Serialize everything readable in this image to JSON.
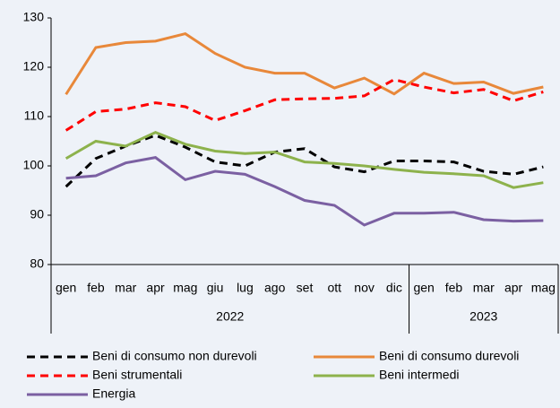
{
  "chart_data": {
    "type": "line",
    "years": [
      {
        "name": "2022",
        "months": [
          "gen",
          "feb",
          "mar",
          "apr",
          "mag",
          "giu",
          "lug",
          "ago",
          "set",
          "ott",
          "nov",
          "dic"
        ]
      },
      {
        "name": "2023",
        "months": [
          "gen",
          "feb",
          "mar",
          "apr",
          "mag"
        ]
      }
    ],
    "ylim": [
      80,
      130
    ],
    "yticks": [
      80,
      90,
      100,
      110,
      120,
      130
    ],
    "grid": false,
    "series": [
      {
        "name": "Beni di consumo non durevoli",
        "color": "#000000",
        "dashed": true,
        "values": [
          95.8,
          101.5,
          104,
          106.2,
          103.8,
          100.8,
          100,
          102.8,
          103.5,
          99.8,
          98.8,
          101,
          101,
          100.8,
          98.9,
          98.3,
          99.8
        ]
      },
      {
        "name": "Beni di consumo durevoli",
        "color": "#e8883a",
        "dashed": false,
        "values": [
          114.5,
          124,
          125,
          125.3,
          126.8,
          122.8,
          120,
          118.8,
          118.8,
          115.8,
          117.8,
          114.6,
          118.8,
          116.7,
          117,
          114.7,
          116
        ]
      },
      {
        "name": "Beni strumentali",
        "color": "#ff0000",
        "dashed": true,
        "values": [
          107.2,
          111,
          111.5,
          112.8,
          112,
          109.2,
          111.2,
          113.4,
          113.6,
          113.7,
          114.2,
          117.5,
          116,
          114.8,
          115.5,
          113.2,
          115
        ]
      },
      {
        "name": "Beni intermedi",
        "color": "#8db24c",
        "dashed": false,
        "values": [
          101.5,
          105,
          104,
          106.8,
          104.4,
          103,
          102.5,
          102.8,
          100.8,
          100.5,
          100,
          99.3,
          98.7,
          98.4,
          98,
          95.6,
          96.6
        ]
      },
      {
        "name": "Energia",
        "color": "#7b60a2",
        "dashed": false,
        "values": [
          97.5,
          98,
          100.6,
          101.7,
          97.2,
          98.9,
          98.3,
          95.8,
          93,
          92,
          88,
          90.4,
          90.4,
          90.6,
          89.1,
          88.8,
          88.9
        ]
      }
    ]
  }
}
